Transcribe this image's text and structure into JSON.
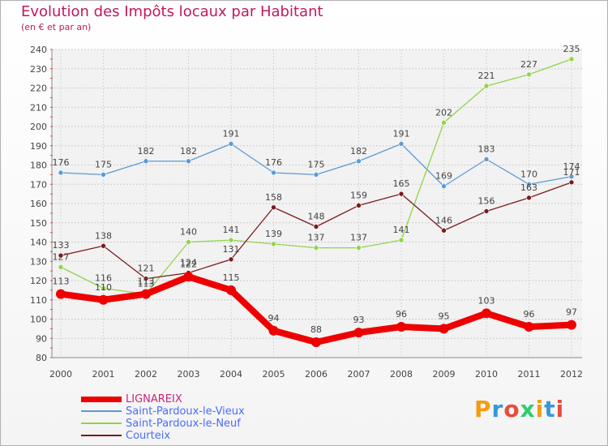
{
  "header": {
    "title": "Evolution des Impôts locaux par Habitant",
    "subtitle": "(en € et par an)"
  },
  "logo": {
    "text": "Prox iti",
    "letters": [
      "P",
      "r",
      "o",
      "x",
      "i",
      "t",
      "i"
    ],
    "colors": [
      "#f39c12",
      "#3498db",
      "#e74c3c",
      "#2ecc71",
      "#f39c12",
      "#3498db",
      "#e74c3c"
    ]
  },
  "chart_data": {
    "type": "line",
    "title": "Evolution des Impôts locaux par Habitant",
    "subtitle": "(en € et par an)",
    "xlabel": "",
    "ylabel": "",
    "x": [
      2000,
      2001,
      2002,
      2003,
      2004,
      2005,
      2006,
      2007,
      2008,
      2009,
      2010,
      2011,
      2012
    ],
    "ylim": [
      80,
      240
    ],
    "yticks": [
      80,
      90,
      100,
      110,
      120,
      130,
      140,
      150,
      160,
      170,
      180,
      190,
      200,
      210,
      220,
      230,
      240
    ],
    "grid": true,
    "legend_position": "bottom-left",
    "series": [
      {
        "name": "LIGNAREIX",
        "color": "#ee0000",
        "values": [
          113,
          110,
          113,
          122,
          115,
          94,
          88,
          93,
          96,
          95,
          103,
          96,
          97
        ]
      },
      {
        "name": "Saint-Pardoux-le-Vieux",
        "color": "#5b9bd5",
        "values": [
          176,
          175,
          182,
          182,
          191,
          176,
          175,
          182,
          191,
          169,
          183,
          170,
          174
        ]
      },
      {
        "name": "Saint-Pardoux-le-Neuf",
        "color": "#8fd44a",
        "values": [
          127,
          116,
          113,
          140,
          141,
          139,
          137,
          137,
          141,
          202,
          221,
          227,
          235
        ]
      },
      {
        "name": "Courteix",
        "color": "#7b1c1c",
        "values": [
          133,
          138,
          121,
          124,
          131,
          158,
          148,
          159,
          165,
          146,
          156,
          163,
          171
        ]
      }
    ]
  }
}
